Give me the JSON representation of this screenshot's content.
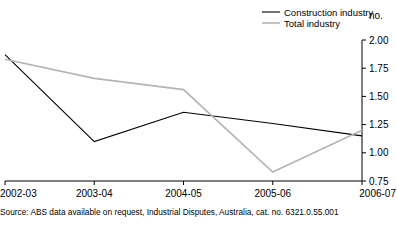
{
  "chart_data": {
    "type": "line",
    "categories": [
      "2002-03",
      "2003-04",
      "2004-05",
      "2005-06",
      "2006-07"
    ],
    "series": [
      {
        "name": "Construction industry",
        "color": "#000000",
        "values": [
          1.87,
          1.1,
          1.36,
          1.26,
          1.15
        ]
      },
      {
        "name": "Total industry",
        "color": "#b4b4b4",
        "values": [
          1.83,
          1.66,
          1.56,
          0.83,
          1.2
        ]
      }
    ],
    "y_label": "no.",
    "ylim": [
      0.75,
      2.0
    ],
    "yticks": [
      0.75,
      {
        "value": 1.0,
        "label": "1.00"
      },
      1.25,
      {
        "value": 1.5,
        "label": "1.50"
      },
      1.75,
      {
        "value": 2.0,
        "label": "2.00"
      }
    ],
    "legend": "top-right",
    "source": "Source: ABS data available on request, Industrial Disputes, Australia, cat. no. 6321.0.55.001"
  }
}
